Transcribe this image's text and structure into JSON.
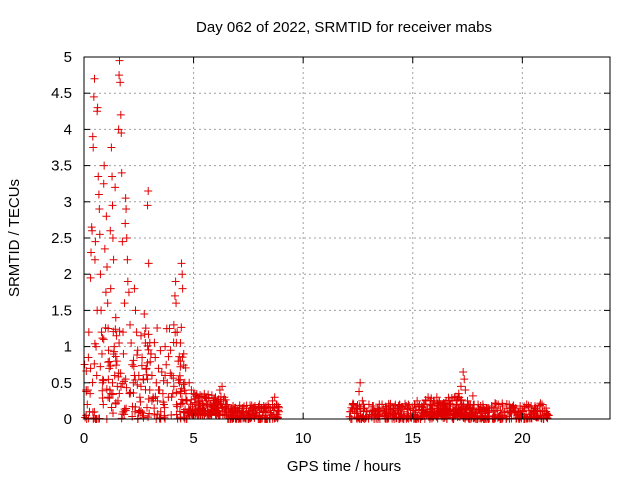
{
  "chart_data": {
    "type": "scatter",
    "title": "Day 062 of 2022, SRMTID for receiver mabs",
    "xlabel": "GPS time / hours",
    "ylabel": "SRMTID / TECUs",
    "xlim": [
      0,
      24
    ],
    "ylim": [
      0,
      5
    ],
    "xticks": [
      0,
      5,
      10,
      15,
      20
    ],
    "yticks": [
      0,
      0.5,
      1,
      1.5,
      2,
      2.5,
      3,
      3.5,
      4,
      4.5,
      5
    ],
    "xtick_labels": [
      "0",
      "5",
      "10",
      "15",
      "20"
    ],
    "ytick_labels": [
      "0",
      "0.5",
      "1",
      "1.5",
      "2",
      "2.5",
      "3",
      "3.5",
      "4",
      "4.5",
      "5"
    ],
    "grid": true,
    "legend": "none",
    "marker": "+",
    "color": "#e00000",
    "series": [
      {
        "values": [
          [
            0.05,
            0.02
          ],
          [
            0.1,
            0.05
          ],
          [
            0.15,
            0.2
          ],
          [
            0.18,
            0.4
          ],
          [
            0.2,
            0.85
          ],
          [
            0.22,
            1.2
          ],
          [
            0.25,
            0.1
          ],
          [
            0.28,
            0.35
          ],
          [
            0.3,
            1.95
          ],
          [
            0.32,
            2.3
          ],
          [
            0.35,
            2.65
          ],
          [
            0.37,
            2.6
          ],
          [
            0.4,
            3.9
          ],
          [
            0.42,
            3.75
          ],
          [
            0.45,
            4.45
          ],
          [
            0.48,
            4.7
          ],
          [
            0.5,
            2.2
          ],
          [
            0.52,
            2.45
          ],
          [
            0.55,
            1.0
          ],
          [
            0.58,
            0.6
          ],
          [
            0.6,
            4.25
          ],
          [
            0.62,
            4.3
          ],
          [
            0.65,
            3.35
          ],
          [
            0.68,
            3.1
          ],
          [
            0.7,
            2.9
          ],
          [
            0.72,
            2.55
          ],
          [
            0.75,
            2.0
          ],
          [
            0.78,
            1.5
          ],
          [
            0.8,
            1.2
          ],
          [
            0.82,
            0.9
          ],
          [
            0.85,
            0.5
          ],
          [
            0.88,
            0.2
          ],
          [
            0.9,
            3.25
          ],
          [
            0.92,
            3.5
          ],
          [
            0.95,
            2.35
          ],
          [
            1.0,
            1.75
          ],
          [
            1.02,
            2.8
          ],
          [
            1.05,
            2.1
          ],
          [
            1.08,
            1.6
          ],
          [
            1.1,
            1.25
          ],
          [
            1.12,
            0.95
          ],
          [
            1.15,
            0.7
          ],
          [
            1.18,
            0.4
          ],
          [
            1.2,
            2.6
          ],
          [
            1.22,
            1.8
          ],
          [
            1.25,
            3.75
          ],
          [
            1.28,
            3.35
          ],
          [
            1.3,
            2.95
          ],
          [
            1.32,
            2.5
          ],
          [
            1.35,
            2.2
          ],
          [
            1.38,
            1.0
          ],
          [
            1.4,
            0.6
          ],
          [
            1.42,
            3.2
          ],
          [
            1.45,
            1.4
          ],
          [
            1.48,
            1.15
          ],
          [
            1.5,
            0.8
          ],
          [
            1.52,
            0.45
          ],
          [
            1.55,
            0.25
          ],
          [
            1.58,
            4.0
          ],
          [
            1.6,
            4.75
          ],
          [
            1.62,
            4.95
          ],
          [
            1.65,
            4.65
          ],
          [
            1.68,
            4.2
          ],
          [
            1.7,
            3.95
          ],
          [
            1.72,
            3.4
          ],
          [
            1.75,
            2.45
          ],
          [
            1.78,
            1.2
          ],
          [
            1.8,
            0.9
          ],
          [
            1.85,
            1.6
          ],
          [
            1.88,
            2.7
          ],
          [
            1.9,
            3.05
          ],
          [
            1.92,
            2.9
          ],
          [
            1.95,
            2.5
          ],
          [
            1.98,
            2.2
          ],
          [
            2.0,
            1.9
          ],
          [
            2.05,
            1.75
          ],
          [
            2.1,
            1.3
          ],
          [
            2.15,
            1.05
          ],
          [
            2.2,
            0.75
          ],
          [
            2.25,
            0.5
          ],
          [
            2.3,
            1.8
          ],
          [
            2.35,
            1.5
          ],
          [
            2.4,
            1.2
          ],
          [
            2.45,
            0.95
          ],
          [
            2.5,
            0.6
          ],
          [
            2.55,
            0.3
          ],
          [
            2.6,
            1.15
          ],
          [
            2.65,
            0.85
          ],
          [
            2.7,
            0.55
          ],
          [
            2.75,
            1.45
          ],
          [
            2.8,
            1.05
          ],
          [
            2.85,
            0.7
          ],
          [
            2.9,
            2.95
          ],
          [
            2.93,
            3.15
          ],
          [
            2.95,
            2.15
          ],
          [
            3.0,
            0.4
          ],
          [
            3.05,
            0.9
          ],
          [
            3.1,
            0.6
          ],
          [
            3.15,
            0.3
          ],
          [
            3.2,
            0.15
          ],
          [
            3.25,
            0.85
          ],
          [
            3.3,
            0.5
          ],
          [
            3.35,
            0.25
          ],
          [
            3.4,
            0.7
          ],
          [
            3.45,
            0.4
          ],
          [
            3.5,
            0.1
          ],
          [
            3.55,
            0.65
          ],
          [
            3.6,
            0.35
          ],
          [
            3.65,
            0.2
          ],
          [
            3.7,
            1.0
          ],
          [
            3.75,
            0.75
          ],
          [
            3.8,
            0.5
          ],
          [
            3.85,
            0.3
          ],
          [
            3.9,
            1.25
          ],
          [
            3.95,
            0.95
          ],
          [
            4.0,
            0.6
          ],
          [
            4.05,
            0.35
          ],
          [
            4.1,
            1.3
          ],
          [
            4.15,
            1.7
          ],
          [
            4.18,
            1.9
          ],
          [
            4.2,
            1.6
          ],
          [
            4.25,
            1.2
          ],
          [
            4.3,
            0.8
          ],
          [
            4.35,
            0.5
          ],
          [
            4.4,
            1.05
          ],
          [
            4.45,
            2.15
          ],
          [
            4.48,
            2.0
          ],
          [
            4.5,
            1.8
          ],
          [
            4.55,
            0.9
          ],
          [
            4.6,
            0.5
          ],
          [
            4.65,
            0.35
          ],
          [
            4.7,
            0.25
          ],
          [
            0.1,
            0.4
          ],
          [
            0.3,
            0.7
          ],
          [
            0.6,
            1.5
          ],
          [
            0.9,
            1.1
          ],
          [
            1.1,
            0.3
          ],
          [
            1.3,
            0.5
          ],
          [
            1.6,
            1.05
          ],
          [
            1.9,
            0.55
          ],
          [
            2.1,
            0.35
          ],
          [
            2.3,
            0.6
          ],
          [
            2.6,
            0.45
          ],
          [
            2.9,
            0.55
          ],
          [
            3.1,
            0.25
          ],
          [
            3.4,
            0.4
          ],
          [
            3.7,
            0.6
          ],
          [
            4.1,
            0.45
          ],
          [
            4.4,
            0.35
          ],
          [
            4.8,
            0.5
          ],
          [
            4.9,
            0.4
          ],
          [
            5.0,
            0.35
          ],
          [
            5.1,
            0.28
          ],
          [
            5.2,
            0.3
          ],
          [
            5.3,
            0.25
          ],
          [
            5.4,
            0.22
          ],
          [
            5.5,
            0.3
          ],
          [
            5.6,
            0.2
          ],
          [
            5.7,
            0.25
          ],
          [
            5.8,
            0.18
          ],
          [
            5.9,
            0.22
          ],
          [
            6.0,
            0.3
          ],
          [
            6.1,
            0.25
          ],
          [
            6.2,
            0.4
          ],
          [
            6.3,
            0.45
          ],
          [
            6.4,
            0.3
          ],
          [
            6.5,
            0.2
          ],
          [
            6.6,
            0.15
          ],
          [
            6.7,
            0.12
          ],
          [
            6.8,
            0.18
          ],
          [
            6.9,
            0.1
          ],
          [
            7.0,
            0.12
          ],
          [
            7.1,
            0.08
          ],
          [
            7.2,
            0.1
          ],
          [
            7.3,
            0.06
          ],
          [
            7.4,
            0.1
          ],
          [
            7.5,
            0.08
          ],
          [
            7.6,
            0.15
          ],
          [
            7.7,
            0.1
          ],
          [
            7.8,
            0.18
          ],
          [
            7.9,
            0.12
          ],
          [
            8.0,
            0.2
          ],
          [
            8.1,
            0.15
          ],
          [
            8.2,
            0.18
          ],
          [
            8.3,
            0.12
          ],
          [
            8.4,
            0.2
          ],
          [
            8.5,
            0.15
          ],
          [
            8.6,
            0.25
          ],
          [
            8.7,
            0.3
          ],
          [
            8.8,
            0.2
          ],
          [
            8.9,
            0.1
          ],
          [
            12.15,
            0.1
          ],
          [
            12.3,
            0.2
          ],
          [
            12.45,
            0.15
          ],
          [
            12.55,
            0.38
          ],
          [
            12.6,
            0.5
          ],
          [
            12.7,
            0.25
          ],
          [
            12.8,
            0.15
          ],
          [
            12.9,
            0.1
          ],
          [
            13.0,
            0.2
          ],
          [
            13.1,
            0.12
          ],
          [
            13.2,
            0.18
          ],
          [
            13.3,
            0.1
          ],
          [
            13.4,
            0.15
          ],
          [
            13.5,
            0.12
          ],
          [
            13.6,
            0.2
          ],
          [
            13.7,
            0.1
          ],
          [
            13.8,
            0.15
          ],
          [
            13.9,
            0.12
          ],
          [
            14.0,
            0.1
          ],
          [
            14.1,
            0.15
          ],
          [
            14.2,
            0.18
          ],
          [
            14.3,
            0.12
          ],
          [
            14.4,
            0.2
          ],
          [
            14.5,
            0.15
          ],
          [
            14.6,
            0.1
          ],
          [
            14.7,
            0.18
          ],
          [
            14.8,
            0.2
          ],
          [
            14.9,
            0.12
          ],
          [
            15.0,
            0.15
          ],
          [
            15.1,
            0.2
          ],
          [
            15.2,
            0.25
          ],
          [
            15.3,
            0.18
          ],
          [
            15.4,
            0.12
          ],
          [
            15.5,
            0.2
          ],
          [
            15.6,
            0.25
          ],
          [
            15.7,
            0.3
          ],
          [
            15.8,
            0.2
          ],
          [
            15.9,
            0.15
          ],
          [
            16.0,
            0.22
          ],
          [
            16.1,
            0.3
          ],
          [
            16.2,
            0.25
          ],
          [
            16.3,
            0.18
          ],
          [
            16.4,
            0.22
          ],
          [
            16.5,
            0.15
          ],
          [
            16.6,
            0.2
          ],
          [
            16.7,
            0.18
          ],
          [
            16.8,
            0.25
          ],
          [
            16.9,
            0.3
          ],
          [
            17.0,
            0.2
          ],
          [
            17.1,
            0.35
          ],
          [
            17.2,
            0.45
          ],
          [
            17.3,
            0.65
          ],
          [
            17.35,
            0.55
          ],
          [
            17.4,
            0.4
          ],
          [
            17.5,
            0.25
          ],
          [
            17.6,
            0.15
          ],
          [
            17.7,
            0.12
          ],
          [
            17.8,
            0.2
          ],
          [
            17.9,
            0.1
          ],
          [
            18.0,
            0.15
          ],
          [
            18.1,
            0.12
          ],
          [
            18.2,
            0.2
          ],
          [
            18.3,
            0.1
          ],
          [
            18.4,
            0.15
          ],
          [
            18.5,
            0.12
          ],
          [
            18.6,
            0.18
          ],
          [
            18.7,
            0.1
          ],
          [
            18.8,
            0.15
          ],
          [
            18.9,
            0.2
          ],
          [
            19.0,
            0.12
          ],
          [
            19.1,
            0.18
          ],
          [
            19.2,
            0.1
          ],
          [
            19.3,
            0.15
          ],
          [
            19.4,
            0.2
          ],
          [
            19.5,
            0.12
          ],
          [
            19.6,
            0.18
          ],
          [
            19.7,
            0.15
          ],
          [
            19.8,
            0.1
          ],
          [
            19.9,
            0.18
          ],
          [
            20.0,
            0.12
          ],
          [
            20.1,
            0.15
          ],
          [
            20.2,
            0.2
          ],
          [
            20.3,
            0.12
          ],
          [
            20.4,
            0.18
          ],
          [
            20.5,
            0.1
          ],
          [
            20.6,
            0.15
          ],
          [
            20.7,
            0.12
          ],
          [
            20.8,
            0.18
          ],
          [
            20.9,
            0.2
          ],
          [
            21.0,
            0.12
          ],
          [
            21.1,
            0.08
          ],
          [
            21.2,
            0.05
          ]
        ]
      }
    ],
    "fill_bands": [
      {
        "x_start": 0.0,
        "x_end": 4.7,
        "y_min": 0.0,
        "y_max": 1.3,
        "density": 160
      },
      {
        "x_start": 4.7,
        "x_end": 6.5,
        "y_min": 0.05,
        "y_max": 0.35,
        "density": 130
      },
      {
        "x_start": 6.5,
        "x_end": 8.9,
        "y_min": 0.0,
        "y_max": 0.2,
        "density": 130
      },
      {
        "x_start": 12.1,
        "x_end": 21.2,
        "y_min": 0.0,
        "y_max": 0.22,
        "density": 420
      },
      {
        "x_start": 15.5,
        "x_end": 17.8,
        "y_min": 0.05,
        "y_max": 0.32,
        "density": 90
      }
    ]
  }
}
